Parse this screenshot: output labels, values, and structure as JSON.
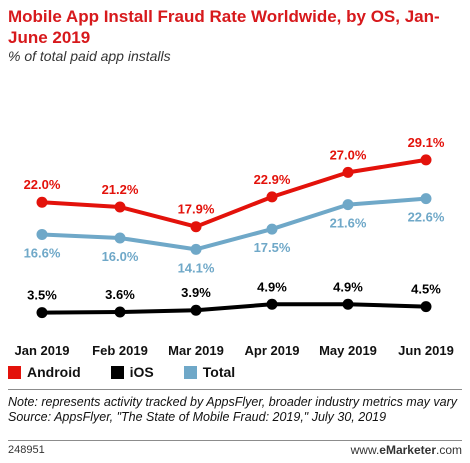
{
  "header": {
    "title": "Mobile App Install Fraud Rate Worldwide, by OS, Jan-June 2019",
    "subtitle": "% of total paid app installs"
  },
  "colors": {
    "android": "#e3120b",
    "ios": "#000000",
    "total": "#6fa8c8",
    "title": "#d7191c"
  },
  "chart_data": {
    "type": "line",
    "title": "Mobile App Install Fraud Rate Worldwide, by OS, Jan-June 2019",
    "subtitle": "% of total paid app installs",
    "categories": [
      "Jan 2019",
      "Feb 2019",
      "Mar 2019",
      "Apr 2019",
      "May 2019",
      "Jun 2019"
    ],
    "series": [
      {
        "name": "Android",
        "values": [
          22.0,
          21.2,
          17.9,
          22.9,
          27.0,
          29.1
        ],
        "labels": [
          "22.0%",
          "21.2%",
          "17.9%",
          "22.9%",
          "27.0%",
          "29.1%"
        ],
        "color": "#e3120b",
        "label_position": "above"
      },
      {
        "name": "iOS",
        "values": [
          3.5,
          3.6,
          3.9,
          4.9,
          4.9,
          4.5
        ],
        "labels": [
          "3.5%",
          "3.6%",
          "3.9%",
          "4.9%",
          "4.9%",
          "4.5%"
        ],
        "color": "#000000",
        "label_position": "above"
      },
      {
        "name": "Total",
        "values": [
          16.6,
          16.0,
          14.1,
          17.5,
          21.6,
          22.6
        ],
        "labels": [
          "16.6%",
          "16.0%",
          "14.1%",
          "17.5%",
          "21.6%",
          "22.6%"
        ],
        "color": "#6fa8c8",
        "label_position": "below"
      }
    ],
    "xlabel": "",
    "ylabel": "",
    "grid": false,
    "legend": "bottom-left"
  },
  "legend": {
    "items": [
      {
        "label": "Android",
        "color": "#e3120b"
      },
      {
        "label": "iOS",
        "color": "#000000"
      },
      {
        "label": "Total",
        "color": "#6fa8c8"
      }
    ]
  },
  "footer": {
    "note": "Note: represents activity tracked by AppsFlyer, broader industry metrics may vary",
    "source": "Source: AppsFlyer, \"The State of Mobile Fraud: 2019,\" July 30, 2019",
    "chart_id": "248951",
    "brand_prefix": "www.",
    "brand_name": "eMarketer",
    "brand_suffix": ".com"
  }
}
